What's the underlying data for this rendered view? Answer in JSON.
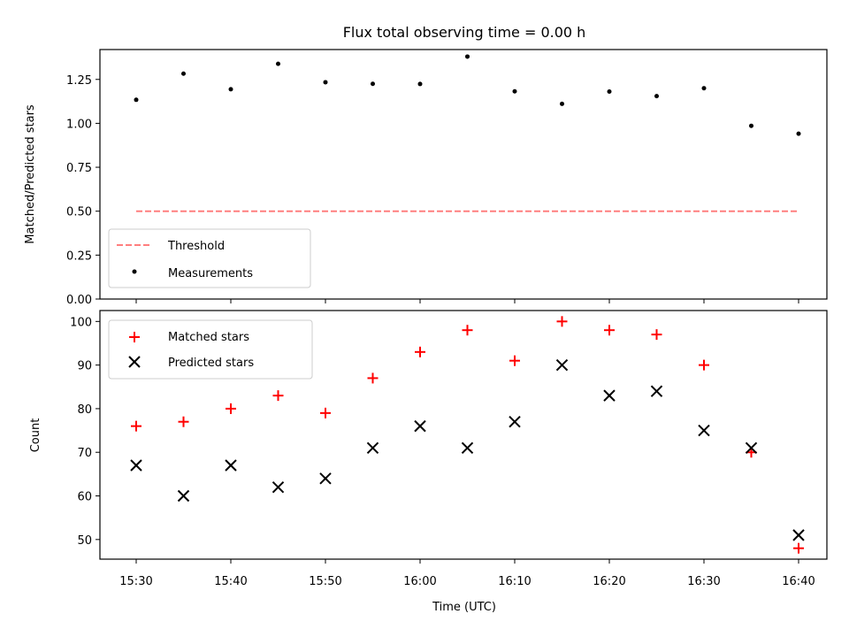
{
  "chart_data": [
    {
      "type": "scatter",
      "title": "Flux total observing time = 0.00 h",
      "xlabel": "",
      "ylabel": "Matched/Predicted stars",
      "ylim": [
        0,
        1.42
      ],
      "yticks": [
        "0.00",
        "0.25",
        "0.50",
        "0.75",
        "1.00",
        "1.25"
      ],
      "x": [
        "15:30",
        "15:35",
        "15:40",
        "15:45",
        "15:50",
        "15:55",
        "16:00",
        "16:05",
        "16:10",
        "16:15",
        "16:20",
        "16:25",
        "16:30",
        "16:35",
        "16:40"
      ],
      "series": [
        {
          "name": "Measurements",
          "marker": "dot",
          "color": "#000000",
          "values": [
            1.134,
            1.283,
            1.194,
            1.339,
            1.234,
            1.225,
            1.224,
            1.38,
            1.182,
            1.111,
            1.181,
            1.155,
            1.2,
            0.986,
            0.941
          ]
        },
        {
          "name": "Threshold",
          "marker": "dashed-line",
          "color": "#ff7f7f",
          "values": [
            0.5,
            0.5
          ]
        }
      ],
      "legend": "lower-left",
      "grid": false
    },
    {
      "type": "scatter",
      "title": "",
      "xlabel": "Time (UTC)",
      "ylabel": "Count",
      "ylim": [
        45.5,
        102.5
      ],
      "yticks": [
        "50",
        "60",
        "70",
        "80",
        "90",
        "100"
      ],
      "xticks": [
        "15:30",
        "15:40",
        "15:50",
        "16:00",
        "16:10",
        "16:20",
        "16:30",
        "16:40"
      ],
      "x": [
        "15:30",
        "15:35",
        "15:40",
        "15:45",
        "15:50",
        "15:55",
        "16:00",
        "16:05",
        "16:10",
        "16:15",
        "16:20",
        "16:25",
        "16:30",
        "16:35",
        "16:40"
      ],
      "series": [
        {
          "name": "Matched stars",
          "marker": "plus",
          "color": "#ff0000",
          "values": [
            76,
            77,
            80,
            83,
            79,
            87,
            93,
            98,
            91,
            100,
            98,
            97,
            90,
            70,
            48
          ]
        },
        {
          "name": "Predicted stars",
          "marker": "x",
          "color": "#000000",
          "values": [
            67,
            60,
            67,
            62,
            64,
            71,
            76,
            71,
            77,
            90,
            83,
            84,
            75,
            71,
            51
          ]
        }
      ],
      "legend": "upper-left",
      "grid": false
    }
  ]
}
